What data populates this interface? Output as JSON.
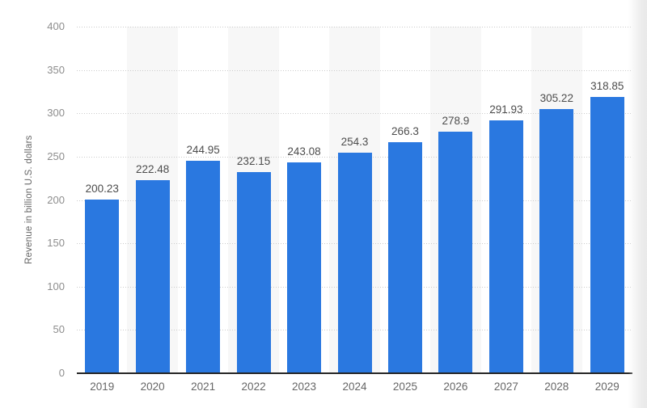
{
  "chart_data": {
    "type": "bar",
    "title": "",
    "xlabel": "",
    "ylabel": "Revenue in billion U.S. dollars",
    "categories": [
      "2019",
      "2020",
      "2021",
      "2022",
      "2023",
      "2024",
      "2025",
      "2026",
      "2027",
      "2028",
      "2029"
    ],
    "values": [
      200.23,
      222.48,
      244.95,
      232.15,
      243.08,
      254.3,
      266.3,
      278.9,
      291.93,
      305.22,
      318.85
    ],
    "value_labels": [
      "200.23",
      "222.48",
      "244.95",
      "232.15",
      "243.08",
      "254.3",
      "266.3",
      "278.9",
      "291.93",
      "305.22",
      "318.85"
    ],
    "y_ticks": [
      0,
      50,
      100,
      150,
      200,
      250,
      300,
      350,
      400
    ],
    "ylim": [
      0,
      400
    ],
    "grid": "horizontal-dotted",
    "legend": "none",
    "colors": {
      "bar": "#2a78e0",
      "column_band": "#f7f7f7",
      "gridline": "#cbcbcb",
      "baseline": "#262626",
      "y_tick_text": "#8d8d8d",
      "x_tick_text": "#666666",
      "value_label_text": "#4d4d4d",
      "axis_title_text": "#666666",
      "page_edge": "#ececec"
    }
  }
}
